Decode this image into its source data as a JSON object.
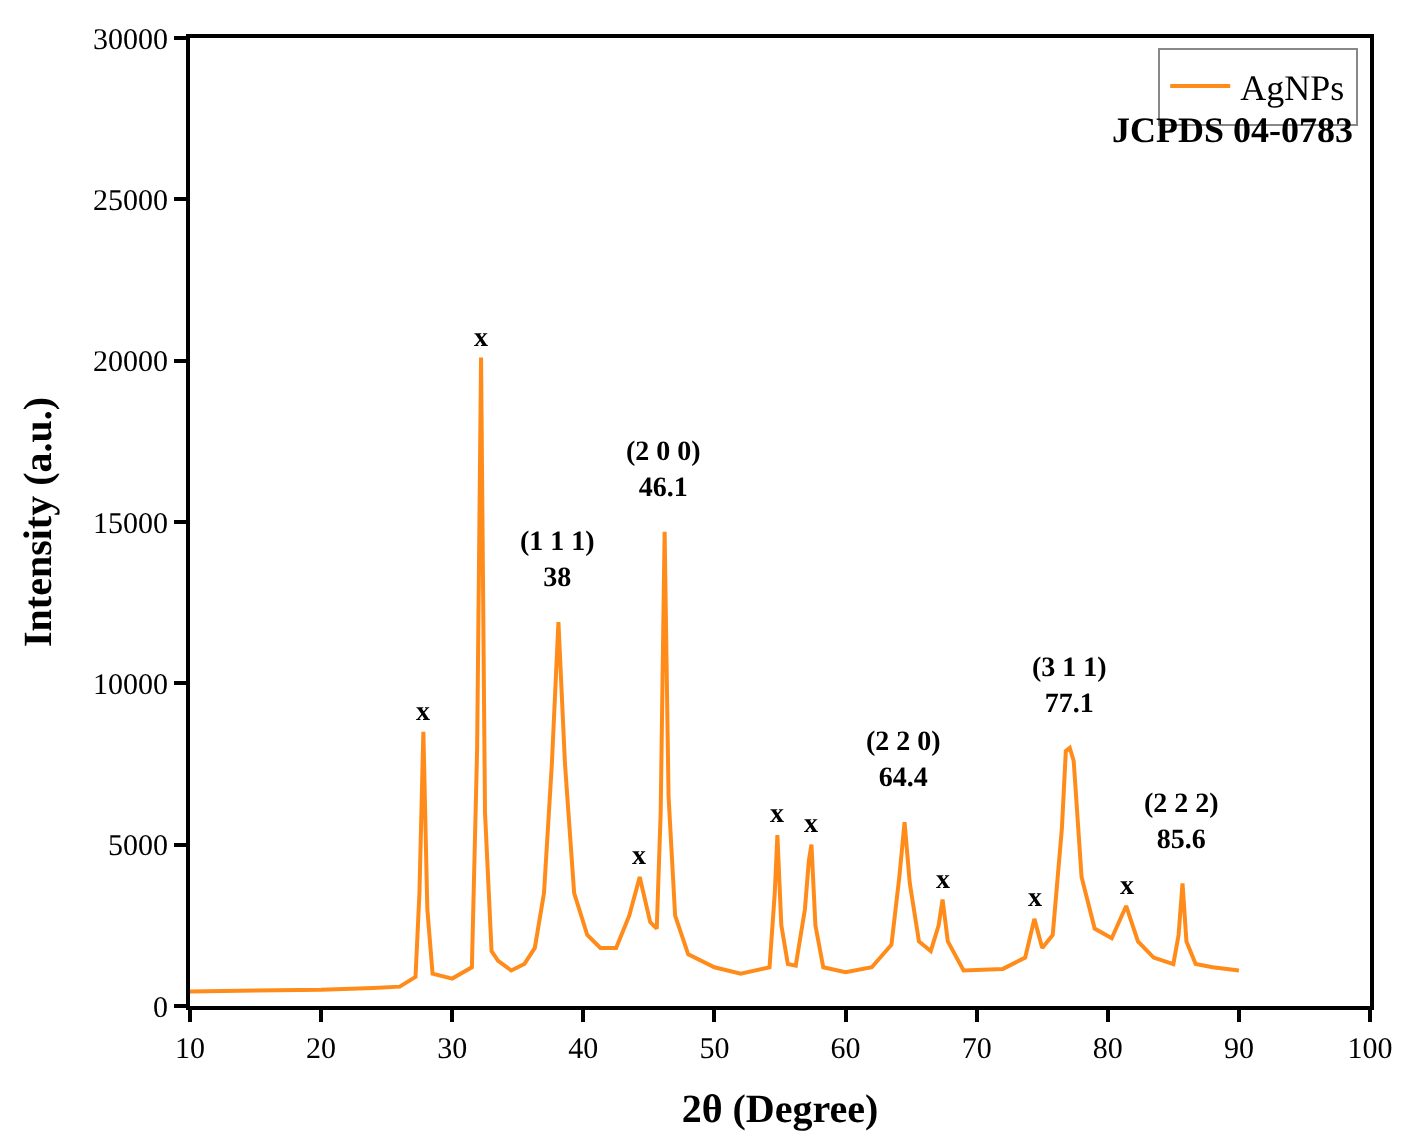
{
  "chart_data": {
    "type": "line",
    "xlabel": "2θ (Degree)",
    "ylabel": "Intensity (a.u.)",
    "legend": "top right",
    "grid": false,
    "marker": "none",
    "line_style": "solid",
    "xlim": [
      10,
      100
    ],
    "xticks": [
      10,
      20,
      30,
      40,
      50,
      60,
      70,
      80,
      90,
      100
    ],
    "ylim": [
      0,
      30000
    ],
    "yticks": [
      0,
      5000,
      10000,
      15000,
      20000,
      25000,
      30000
    ],
    "series": [
      {
        "name": "AgNPs",
        "color": "#ff8c1a",
        "x": [
          10,
          15,
          20,
          24,
          26,
          27.2,
          27.5,
          27.8,
          28.1,
          28.5,
          30,
          31.5,
          31.9,
          32.2,
          32.5,
          33,
          33.5,
          34.5,
          35.5,
          36.3,
          37,
          37.6,
          38.1,
          38.6,
          39.3,
          40.3,
          41.3,
          42.5,
          43.5,
          44.3,
          45.1,
          45.6,
          45.9,
          46.2,
          46.5,
          47,
          48,
          50,
          52,
          54.2,
          54.6,
          54.8,
          55.1,
          55.6,
          56.2,
          56.9,
          57.2,
          57.4,
          57.7,
          58.3,
          60,
          62,
          63.5,
          64.1,
          64.5,
          64.9,
          65.6,
          66.5,
          67.1,
          67.4,
          67.8,
          69,
          72,
          73.7,
          74.4,
          75,
          75.8,
          76.5,
          76.8,
          77.1,
          77.4,
          78,
          79,
          80.3,
          81.4,
          82.3,
          83.5,
          85,
          85.4,
          85.7,
          86,
          86.7,
          88,
          90
        ],
        "values": [
          450,
          480,
          500,
          560,
          600,
          900,
          3500,
          8500,
          3000,
          1000,
          850,
          1200,
          8000,
          20100,
          6000,
          1700,
          1400,
          1100,
          1300,
          1800,
          3500,
          7500,
          11900,
          7500,
          3500,
          2200,
          1800,
          1800,
          2800,
          4000,
          2600,
          2400,
          6000,
          14700,
          6500,
          2800,
          1600,
          1200,
          1000,
          1200,
          3500,
          5300,
          2500,
          1300,
          1250,
          3000,
          4500,
          5000,
          2500,
          1200,
          1050,
          1200,
          1900,
          4000,
          5700,
          3800,
          2000,
          1700,
          2500,
          3300,
          2000,
          1100,
          1150,
          1500,
          2700,
          1800,
          2200,
          5500,
          7900,
          8000,
          7600,
          4000,
          2400,
          2100,
          3100,
          2000,
          1500,
          1300,
          2200,
          3800,
          2000,
          1300,
          1200,
          1100
        ]
      }
    ],
    "annotations": [
      {
        "text": "x",
        "x": 27.8,
        "y": 8500
      },
      {
        "text": "x",
        "x": 32.2,
        "y": 20100
      },
      {
        "text": "(1 1 1)\n38",
        "x": 38.1,
        "y": 11900
      },
      {
        "text": "x",
        "x": 44.3,
        "y": 4000
      },
      {
        "text": "(2 0 0)\n46.1",
        "x": 46.2,
        "y": 14700
      },
      {
        "text": "x",
        "x": 54.8,
        "y": 5300
      },
      {
        "text": "x",
        "x": 57.4,
        "y": 5000
      },
      {
        "text": "(2 2 0)\n64.4",
        "x": 64.5,
        "y": 5700
      },
      {
        "text": "x",
        "x": 67.4,
        "y": 3300
      },
      {
        "text": "x",
        "x": 74.4,
        "y": 2700
      },
      {
        "text": "(3 1 1)\n77.1",
        "x": 77.1,
        "y": 8000
      },
      {
        "text": "x",
        "x": 81.4,
        "y": 3100
      },
      {
        "text": "(2 2 2)\n85.6",
        "x": 85.7,
        "y": 3800
      },
      "JCPDS 04-0783"
    ]
  }
}
